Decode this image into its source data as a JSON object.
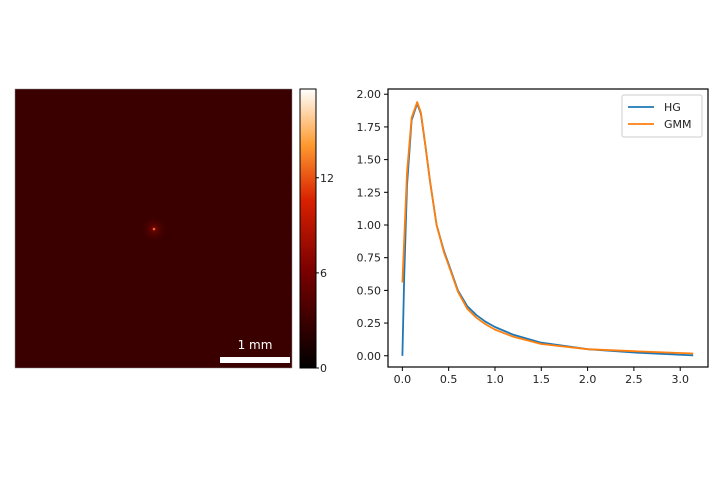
{
  "image_panel": {
    "scale_bar_label": "1 mm",
    "background_color": "#3a0000",
    "spot_color": "#ff5a3a",
    "colormap": "gist_heat"
  },
  "colorbar": {
    "range": [
      0,
      17.6
    ],
    "ticks": [
      0,
      6,
      12
    ],
    "tick_labels": [
      "0",
      "6",
      "12"
    ]
  },
  "chart_data": {
    "type": "line",
    "title": "",
    "xlabel": "",
    "ylabel": "",
    "xlim": [
      -0.155,
      3.3
    ],
    "ylim": [
      -0.086,
      2.04
    ],
    "xticks": [
      0.0,
      0.5,
      1.0,
      1.5,
      2.0,
      2.5,
      3.0
    ],
    "xtick_labels": [
      "0.0",
      "0.5",
      "1.0",
      "1.5",
      "2.0",
      "2.5",
      "3.0"
    ],
    "yticks": [
      0,
      0.25,
      0.5,
      0.75,
      1.0,
      1.25,
      1.5,
      1.75,
      2.0
    ],
    "ytick_labels": [
      "0.00",
      "0.25",
      "0.50",
      "0.75",
      "1.00",
      "1.25",
      "1.50",
      "1.75",
      "2.00"
    ],
    "grid": false,
    "legend_position": "top-right",
    "series": [
      {
        "name": "HG",
        "color": "#1f77b4",
        "x": [
          0,
          0.02,
          0.05,
          0.1,
          0.16,
          0.2,
          0.25,
          0.3,
          0.37,
          0.45,
          0.5,
          0.6,
          0.7,
          0.8,
          0.9,
          1.0,
          1.2,
          1.5,
          2.0,
          2.5,
          3.14
        ],
        "y": [
          0,
          0.6,
          1.3,
          1.8,
          1.93,
          1.85,
          1.6,
          1.33,
          1.0,
          0.8,
          0.7,
          0.5,
          0.38,
          0.31,
          0.26,
          0.22,
          0.16,
          0.1,
          0.05,
          0.025,
          0.003
        ]
      },
      {
        "name": "GMM",
        "color": "#ff7f0e",
        "x": [
          0,
          0.05,
          0.1,
          0.16,
          0.2,
          0.25,
          0.3,
          0.37,
          0.45,
          0.5,
          0.6,
          0.7,
          0.8,
          0.9,
          1.0,
          1.2,
          1.5,
          2.0,
          2.5,
          3.14
        ],
        "y": [
          0.56,
          1.4,
          1.82,
          1.94,
          1.86,
          1.6,
          1.33,
          1.0,
          0.79,
          0.69,
          0.49,
          0.36,
          0.29,
          0.24,
          0.2,
          0.145,
          0.09,
          0.05,
          0.035,
          0.017
        ]
      }
    ]
  }
}
